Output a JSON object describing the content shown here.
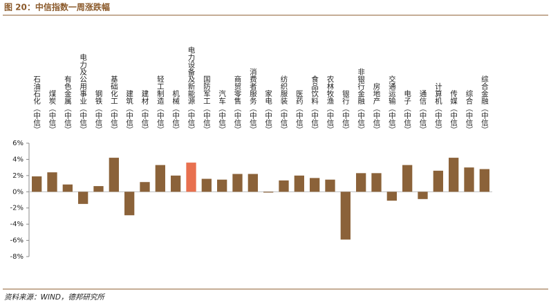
{
  "chart_data": {
    "type": "bar",
    "title": "图 20：中信指数一周涨跌幅",
    "source": "资料来源：WIND，德邦研究所",
    "categories": [
      "石油石化（中信）",
      "煤炭（中信）",
      "有色金属（中信）",
      "电力及公用事业（中信）",
      "钢铁（中信）",
      "基础化工（中信）",
      "建筑（中信）",
      "建材（中信）",
      "轻工制造（中信）",
      "机械（中信）",
      "电力设备及新能源（中信）",
      "国防军工（中信）",
      "汽车（中信）",
      "商贸零售（中信）",
      "消费者服务（中信）",
      "家电（中信）",
      "纺织服装（中信）",
      "医药（中信）",
      "食品饮料（中信）",
      "农林牧渔（中信）",
      "银行（中信）",
      "非银行金融（中信）",
      "房地产（中信）",
      "交通运输（中信）",
      "电子（中信）",
      "通信（中信）",
      "计算机（中信）",
      "传媒（中信）",
      "综合（中信）",
      "综合金融（中信）"
    ],
    "values": [
      1.9,
      2.4,
      0.9,
      -1.5,
      0.7,
      4.2,
      -2.9,
      1.2,
      3.3,
      2.0,
      3.6,
      1.6,
      1.5,
      2.2,
      2.2,
      -0.1,
      1.4,
      2.0,
      1.7,
      1.5,
      -5.9,
      2.3,
      2.3,
      -1.1,
      3.3,
      -0.9,
      2.6,
      4.2,
      3.0,
      2.8
    ],
    "colors": [
      "#8b6239",
      "#8b6239",
      "#8b6239",
      "#8b6239",
      "#8b6239",
      "#8b6239",
      "#8b6239",
      "#8b6239",
      "#8b6239",
      "#8b6239",
      "#e8704f",
      "#8b6239",
      "#8b6239",
      "#8b6239",
      "#8b6239",
      "#8b6239",
      "#8b6239",
      "#8b6239",
      "#8b6239",
      "#8b6239",
      "#8b6239",
      "#8b6239",
      "#8b6239",
      "#8b6239",
      "#8b6239",
      "#8b6239",
      "#8b6239",
      "#8b6239",
      "#8b6239",
      "#8b6239"
    ],
    "ylim": [
      -8,
      6
    ],
    "yticks": [
      {
        "value": -8,
        "label": "-8%"
      },
      {
        "value": -6,
        "label": "-6%"
      },
      {
        "value": -4,
        "label": "-4%"
      },
      {
        "value": -2,
        "label": "-2%"
      },
      {
        "value": 0,
        "label": "0%"
      },
      {
        "value": 2,
        "label": "2%"
      },
      {
        "value": 4,
        "label": "4%"
      },
      {
        "value": 6,
        "label": "6%"
      }
    ],
    "grid": false
  }
}
